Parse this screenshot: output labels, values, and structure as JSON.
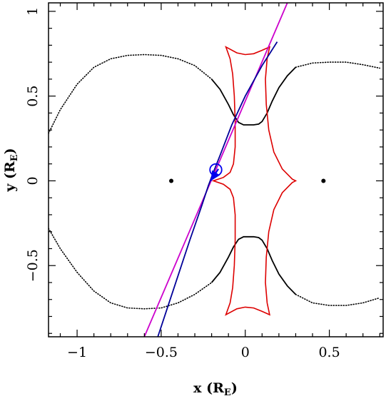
{
  "chart_data": {
    "type": "line",
    "xlabel": {
      "main": "x (R",
      "sub": "E",
      "tail": ")"
    },
    "ylabel": {
      "main": "y (R",
      "sub": "E",
      "tail": ")"
    },
    "xlim": [
      -1.17,
      0.82
    ],
    "ylim": [
      -0.92,
      1.05
    ],
    "xticks": [
      -1,
      -0.5,
      0,
      0.5
    ],
    "xtick_labels": [
      "−1",
      "−0.5",
      "0",
      "0.5"
    ],
    "yticks": [
      -0.5,
      0,
      0.5,
      1
    ],
    "ytick_labels": [
      "−0.5",
      "0",
      "0.5",
      "1"
    ],
    "grid": false,
    "lenses": [
      {
        "x": -0.44,
        "y": 0
      },
      {
        "x": 0.465,
        "y": 0
      }
    ],
    "critical_curve": {
      "color": "#000000",
      "upper_outer": [
        [
          -1.17,
          0.28
        ],
        [
          -1.1,
          0.42
        ],
        [
          -1.0,
          0.57
        ],
        [
          -0.9,
          0.67
        ],
        [
          -0.8,
          0.72
        ],
        [
          -0.7,
          0.74
        ],
        [
          -0.6,
          0.745
        ],
        [
          -0.5,
          0.74
        ],
        [
          -0.4,
          0.72
        ],
        [
          -0.3,
          0.68
        ],
        [
          -0.2,
          0.6
        ]
      ],
      "upper_mid": [
        [
          -0.2,
          0.6
        ],
        [
          -0.15,
          0.54
        ],
        [
          -0.1,
          0.45
        ],
        [
          -0.07,
          0.39
        ],
        [
          -0.04,
          0.345
        ],
        [
          -0.01,
          0.33
        ],
        [
          0.02,
          0.33
        ],
        [
          0.05,
          0.33
        ],
        [
          0.08,
          0.335
        ],
        [
          0.1,
          0.35
        ],
        [
          0.13,
          0.4
        ],
        [
          0.16,
          0.47
        ],
        [
          0.2,
          0.55
        ],
        [
          0.25,
          0.62
        ],
        [
          0.3,
          0.67
        ]
      ],
      "upper_right": [
        [
          0.3,
          0.67
        ],
        [
          0.4,
          0.695
        ],
        [
          0.5,
          0.7
        ],
        [
          0.6,
          0.7
        ],
        [
          0.7,
          0.685
        ],
        [
          0.8,
          0.665
        ]
      ],
      "lower_outer": [
        [
          -1.17,
          -0.28
        ],
        [
          -1.1,
          -0.4
        ],
        [
          -1.0,
          -0.54
        ],
        [
          -0.9,
          -0.65
        ],
        [
          -0.8,
          -0.72
        ],
        [
          -0.7,
          -0.75
        ],
        [
          -0.6,
          -0.755
        ],
        [
          -0.5,
          -0.75
        ],
        [
          -0.4,
          -0.72
        ],
        [
          -0.3,
          -0.67
        ],
        [
          -0.2,
          -0.6
        ]
      ],
      "lower_mid": [
        [
          -0.2,
          -0.6
        ],
        [
          -0.15,
          -0.54
        ],
        [
          -0.1,
          -0.45
        ],
        [
          -0.07,
          -0.39
        ],
        [
          -0.04,
          -0.345
        ],
        [
          -0.01,
          -0.33
        ],
        [
          0.02,
          -0.33
        ],
        [
          0.05,
          -0.33
        ],
        [
          0.08,
          -0.335
        ],
        [
          0.1,
          -0.35
        ],
        [
          0.13,
          -0.4
        ],
        [
          0.16,
          -0.47
        ],
        [
          0.2,
          -0.55
        ],
        [
          0.25,
          -0.62
        ],
        [
          0.3,
          -0.67
        ]
      ],
      "lower_right": [
        [
          0.3,
          -0.67
        ],
        [
          0.4,
          -0.72
        ],
        [
          0.5,
          -0.735
        ],
        [
          0.6,
          -0.735
        ],
        [
          0.7,
          -0.72
        ],
        [
          0.8,
          -0.69
        ]
      ]
    },
    "caustic": {
      "color": "#dd0000",
      "path": [
        [
          -0.19,
          0
        ],
        [
          -0.13,
          0.02
        ],
        [
          -0.09,
          0.05
        ],
        [
          -0.07,
          0.1
        ],
        [
          -0.06,
          0.2
        ],
        [
          -0.06,
          0.35
        ],
        [
          -0.065,
          0.5
        ],
        [
          -0.075,
          0.63
        ],
        [
          -0.09,
          0.72
        ],
        [
          -0.115,
          0.79
        ],
        [
          -0.05,
          0.755
        ],
        [
          0.0,
          0.745
        ],
        [
          0.05,
          0.75
        ],
        [
          0.1,
          0.77
        ],
        [
          0.145,
          0.79
        ],
        [
          0.13,
          0.72
        ],
        [
          0.12,
          0.6
        ],
        [
          0.125,
          0.45
        ],
        [
          0.14,
          0.3
        ],
        [
          0.17,
          0.17
        ],
        [
          0.22,
          0.07
        ],
        [
          0.28,
          0.01
        ],
        [
          0.3,
          0.0
        ],
        [
          0.28,
          -0.01
        ],
        [
          0.22,
          -0.07
        ],
        [
          0.17,
          -0.17
        ],
        [
          0.14,
          -0.3
        ],
        [
          0.125,
          -0.45
        ],
        [
          0.12,
          -0.6
        ],
        [
          0.13,
          -0.72
        ],
        [
          0.145,
          -0.79
        ],
        [
          0.1,
          -0.77
        ],
        [
          0.05,
          -0.75
        ],
        [
          0.0,
          -0.745
        ],
        [
          -0.05,
          -0.755
        ],
        [
          -0.115,
          -0.79
        ],
        [
          -0.09,
          -0.72
        ],
        [
          -0.075,
          -0.63
        ],
        [
          -0.065,
          -0.5
        ],
        [
          -0.06,
          -0.35
        ],
        [
          -0.06,
          -0.2
        ],
        [
          -0.07,
          -0.1
        ],
        [
          -0.09,
          -0.05
        ],
        [
          -0.13,
          -0.02
        ],
        [
          -0.19,
          0
        ]
      ]
    },
    "series": [
      {
        "color": "#cc00cc",
        "points": [
          [
            -0.6,
            -0.92
          ],
          [
            0.25,
            1.05
          ]
        ]
      },
      {
        "color": "#000099",
        "points": [
          [
            -0.52,
            -0.92
          ],
          [
            -0.42,
            -0.62
          ],
          [
            -0.33,
            -0.35
          ],
          [
            -0.26,
            -0.15
          ],
          [
            -0.22,
            -0.03
          ],
          [
            -0.19,
            0.05
          ],
          [
            -0.15,
            0.15
          ],
          [
            -0.08,
            0.33
          ],
          [
            0.0,
            0.5
          ],
          [
            0.1,
            0.68
          ],
          [
            0.19,
            0.82
          ]
        ]
      }
    ],
    "source_circle": {
      "x": -0.175,
      "y": 0.065,
      "r": 0.035,
      "color": "#0000ee"
    },
    "source_arrow": {
      "from": [
        -0.16,
        0.07
      ],
      "to": [
        -0.205,
        0.0
      ],
      "color": "#0000ee"
    }
  }
}
